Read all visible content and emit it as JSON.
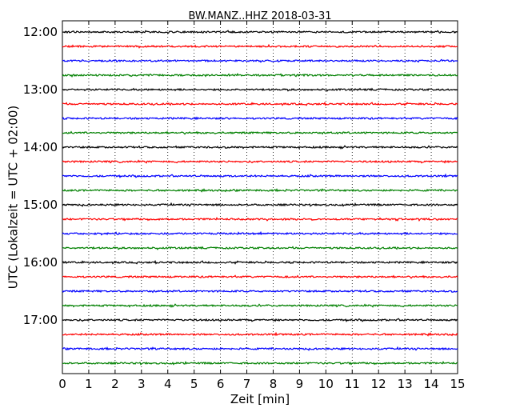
{
  "chart_data": {
    "type": "line",
    "title": "BW.MANZ..HHZ 2018-03-31",
    "xlabel": "Zeit  [min]",
    "ylabel": "UTC (Lokalzeit = UTC + 02:00)",
    "xlim": [
      0,
      15
    ],
    "x_ticks": [
      "0",
      "1",
      "2",
      "3",
      "4",
      "5",
      "6",
      "7",
      "8",
      "9",
      "10",
      "11",
      "12",
      "13",
      "14",
      "15"
    ],
    "y_tick_labels": [
      "12:00",
      "13:00",
      "14:00",
      "15:00",
      "16:00",
      "17:00"
    ],
    "grid": "vertical dotted",
    "trace_interval_min": 15,
    "trace_starts": [
      "12:00",
      "12:15",
      "12:30",
      "12:45",
      "13:00",
      "13:15",
      "13:30",
      "13:45",
      "14:00",
      "14:15",
      "14:30",
      "14:45",
      "15:00",
      "15:15",
      "15:30",
      "15:45",
      "16:00",
      "16:15",
      "16:30",
      "16:45",
      "17:00",
      "17:15",
      "17:30",
      "17:45"
    ],
    "trace_color_cycle": [
      "#000000",
      "#ff0000",
      "#0000ff",
      "#008000"
    ]
  }
}
